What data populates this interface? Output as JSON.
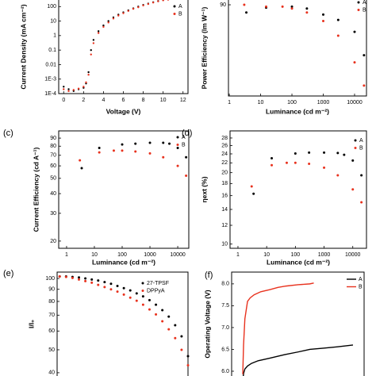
{
  "chart_data": [
    {
      "type": "scatter",
      "xlabel": "Voltage (V)",
      "ylabel": "Current Density (mA cm⁻²)",
      "yscale": "log",
      "x": [
        0,
        0.5,
        1,
        1.5,
        2,
        2.25,
        2.5,
        2.75,
        3,
        3.5,
        4,
        4.5,
        5,
        5.5,
        6,
        6.5,
        7,
        7.5,
        8,
        8.5,
        9,
        9.5,
        10,
        10.5
      ],
      "series": [
        {
          "name": "A",
          "color": "#000000",
          "values": [
            0.0003,
            0.0002,
            0.00015,
            0.0002,
            0.00025,
            0.0005,
            0.003,
            0.1,
            0.5,
            2,
            5,
            10,
            18,
            28,
            40,
            55,
            75,
            100,
            130,
            160,
            200,
            240,
            280,
            320
          ]
        },
        {
          "name": "B",
          "color": "#e8321e",
          "values": [
            0.0002,
            0.00015,
            0.00018,
            0.00022,
            0.0003,
            0.0006,
            0.002,
            0.05,
            0.3,
            1.5,
            4,
            8,
            15,
            24,
            35,
            50,
            70,
            90,
            120,
            150,
            190,
            230,
            270,
            300
          ]
        }
      ],
      "xlim": [
        -0.5,
        12.5
      ],
      "xticks": [
        0,
        2,
        4,
        6,
        8,
        10,
        12
      ],
      "ylim": [
        0.0001,
        1000
      ],
      "yticks": [
        100,
        10,
        1,
        0.1,
        0.01,
        {
          "value": 0.001,
          "label": "1E-3"
        },
        {
          "value": 0.0001,
          "label": "1E-4"
        }
      ]
    },
    {
      "type": "scatter",
      "xlabel": "Luminance (cd m⁻²)",
      "ylabel": "Power Efficiency (lm W⁻¹)",
      "xscale": "log",
      "yscale": "log",
      "series": [
        {
          "name": "A",
          "color": "#000000",
          "x": [
            3.5,
            15,
            100,
            300,
            1000,
            3000,
            10000,
            20000
          ],
          "values": [
            82,
            87,
            88,
            86,
            80,
            75,
            65,
            49
          ]
        },
        {
          "name": "B",
          "color": "#e8321e",
          "x": [
            3,
            15,
            50,
            100,
            300,
            1000,
            3000,
            10000,
            20000
          ],
          "values": [
            90,
            88,
            88,
            86,
            82,
            74,
            62,
            45,
            34
          ]
        }
      ],
      "xlim": [
        0.94,
        24000
      ],
      "xticks": [
        1,
        10,
        100,
        1000,
        10000
      ],
      "ylim": [
        30,
        100
      ],
      "yticks": [
        90
      ]
    },
    {
      "type": "scatter",
      "label": "(c)",
      "xlabel": "Luminance (cd m⁻²)",
      "ylabel": "Current Efficiency (cd A⁻¹)",
      "xscale": "log",
      "yscale": "log",
      "series": [
        {
          "name": "A",
          "color": "#000000",
          "x": [
            3.5,
            15,
            100,
            300,
            1000,
            3000,
            5000,
            10000,
            20000
          ],
          "values": [
            58,
            78,
            82,
            83,
            84,
            84,
            83,
            78,
            68
          ]
        },
        {
          "name": "B",
          "color": "#e8321e",
          "x": [
            3,
            15,
            50,
            100,
            300,
            1000,
            3000,
            10000,
            20000
          ],
          "values": [
            65,
            73,
            75,
            75,
            74,
            72,
            68,
            60,
            52
          ]
        }
      ],
      "xlim": [
        0.52,
        25000
      ],
      "xticks": [
        1,
        10,
        100,
        1000,
        10000
      ],
      "ylim": [
        18,
        100
      ],
      "yticks": [
        90,
        80,
        70,
        60,
        50,
        40,
        30,
        20
      ]
    },
    {
      "type": "scatter",
      "label": "(d)",
      "xlabel": "Luminance (cd m⁻²)",
      "ylabel": "ηext (%)",
      "xscale": "log",
      "yscale": "log",
      "series": [
        {
          "name": "A",
          "color": "#000000",
          "x": [
            3.5,
            15,
            100,
            300,
            1000,
            3000,
            5000,
            10000,
            20000
          ],
          "values": [
            16.3,
            23,
            24.1,
            24.3,
            24.3,
            24.2,
            23.8,
            22.5,
            19.5
          ]
        },
        {
          "name": "B",
          "color": "#e8321e",
          "x": [
            3,
            15,
            50,
            100,
            300,
            1000,
            3000,
            10000,
            20000
          ],
          "values": [
            17.5,
            21.5,
            22,
            22,
            21.8,
            21,
            19.5,
            17,
            15
          ]
        }
      ],
      "xlim": [
        0.53,
        30000
      ],
      "xticks": [
        1,
        10,
        100,
        1000,
        10000
      ],
      "ylim": [
        9.6,
        30
      ],
      "yticks": [
        28,
        26,
        24,
        22,
        20,
        18,
        16,
        14,
        12,
        10
      ]
    },
    {
      "type": "scatter",
      "label": "(e)",
      "ylabel": "I/I₀",
      "yscale": "log",
      "x": [
        0,
        5,
        10,
        15,
        20,
        25,
        30,
        35,
        40,
        45,
        50,
        55,
        60,
        65,
        70,
        75,
        80,
        85,
        90,
        95,
        100
      ],
      "series": [
        {
          "name": "27-TPSF",
          "color": "#000000",
          "values": [
            102,
            102,
            101.5,
            101,
            100,
            99,
            98,
            96.5,
            95,
            93,
            91,
            89,
            86.5,
            84,
            81,
            77.5,
            73.5,
            69,
            63.5,
            57,
            47
          ]
        },
        {
          "name": "DPPyA",
          "color": "#e8321e",
          "values": [
            102,
            101.5,
            100.5,
            99,
            97.5,
            96,
            94,
            92,
            90,
            88,
            85.5,
            83,
            80.5,
            77.5,
            74,
            70.5,
            66,
            61,
            56,
            50,
            43
          ]
        }
      ],
      "xlim": [
        -2,
        100
      ],
      "ylim": [
        37,
        106.4
      ],
      "yticks": [
        100,
        90,
        80,
        70,
        60,
        50,
        40
      ]
    },
    {
      "type": "line",
      "label": "(f)",
      "ylabel": "Operating Voltage (V)",
      "series": [
        {
          "name": "A",
          "color": "#000000",
          "x": [
            8.4,
            9,
            10,
            12,
            15,
            20,
            29,
            40,
            50,
            59,
            70,
            80,
            91.6
          ],
          "values": [
            5.75,
            5.95,
            6.05,
            6.12,
            6.18,
            6.24,
            6.3,
            6.38,
            6.44,
            6.5,
            6.53,
            6.56,
            6.6
          ]
        },
        {
          "name": "B",
          "color": "#e8321e",
          "x": [
            8.4,
            9,
            10,
            12,
            14,
            17,
            22,
            29,
            35,
            41,
            50,
            59,
            62
          ],
          "values": [
            5.93,
            6.6,
            7.2,
            7.6,
            7.68,
            7.75,
            7.82,
            7.87,
            7.92,
            7.95,
            7.98,
            8.0,
            8.02
          ]
        }
      ],
      "xlim": [
        0,
        100
      ],
      "ylim": [
        5.6,
        8.27
      ],
      "yticks": [
        {
          "value": 8,
          "label": "8.0"
        },
        7.5,
        {
          "value": 7,
          "label": "7.0"
        },
        6.5,
        {
          "value": 6,
          "label": "6.0"
        }
      ]
    }
  ]
}
